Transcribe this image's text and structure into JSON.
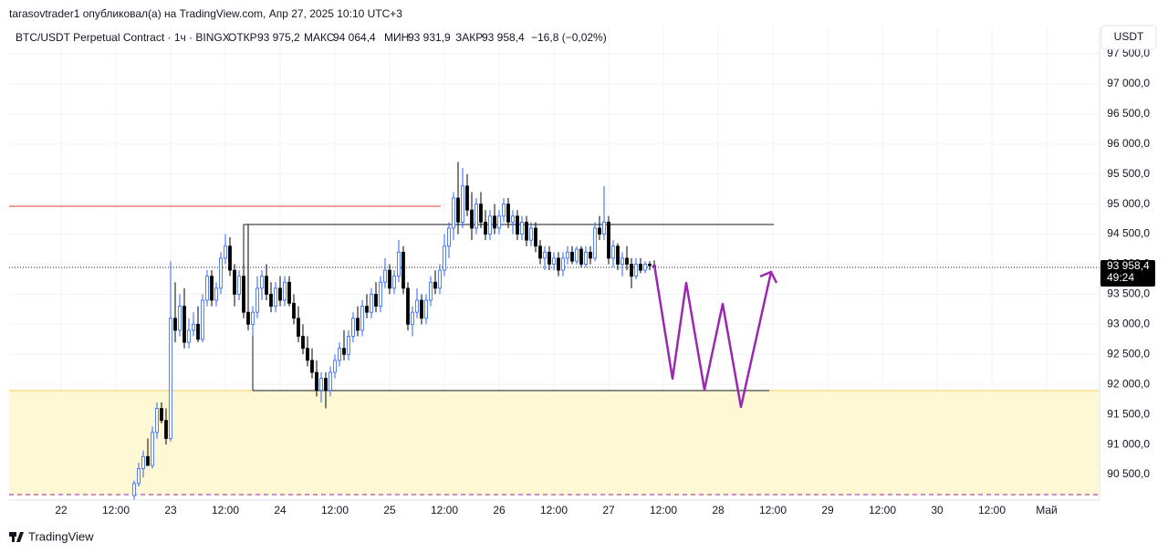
{
  "header": {
    "author_line": "tarasovtrader1 опубликовал(а) на TradingView.com, Апр 27, 2025 10:10 UTC+3",
    "symbol": "BTC/USDT Perpetual Contract · 1ч · BINGX",
    "open_label": "ОТКР",
    "open": "93 975,2",
    "high_label": "МАКС",
    "high": "94 064,4",
    "low_label": "МИН",
    "low": "93 931,9",
    "close_label": "ЗАКР",
    "close": "93 958,4",
    "change": "−16,8 (−0,02%)",
    "currency": "USDT",
    "last_price_label": "93 958,4",
    "countdown": "49:24"
  },
  "footer": {
    "brand": "TradingView"
  },
  "chart_data": {
    "type": "candlestick",
    "up_color": "#2962ff",
    "down_color": "#000000",
    "grid": true,
    "xlim": [
      -11.4,
      227.6
    ],
    "ylim": [
      90075,
      97940
    ],
    "xticks": [
      {
        "value": 0,
        "label": "22"
      },
      {
        "value": 12,
        "label": "12:00"
      },
      {
        "value": 24,
        "label": "23"
      },
      {
        "value": 36,
        "label": "12:00"
      },
      {
        "value": 48,
        "label": "24"
      },
      {
        "value": 60,
        "label": "12:00"
      },
      {
        "value": 72,
        "label": "25"
      },
      {
        "value": 84,
        "label": "12:00"
      },
      {
        "value": 96,
        "label": "26"
      },
      {
        "value": 108,
        "label": "12:00"
      },
      {
        "value": 120,
        "label": "27"
      },
      {
        "value": 132,
        "label": "12:00"
      },
      {
        "value": 144,
        "label": "28"
      },
      {
        "value": 156,
        "label": "12:00"
      },
      {
        "value": 168,
        "label": "29"
      },
      {
        "value": 180,
        "label": "12:00"
      },
      {
        "value": 192,
        "label": "30"
      },
      {
        "value": 204,
        "label": "12:00"
      },
      {
        "value": 216,
        "label": "Май"
      }
    ],
    "yticks": [
      {
        "value": 90500,
        "label": "90 500,0"
      },
      {
        "value": 91000,
        "label": "91 000,0"
      },
      {
        "value": 91500,
        "label": "91 500,0"
      },
      {
        "value": 92000,
        "label": "92 000,0"
      },
      {
        "value": 92500,
        "label": "92 500,0"
      },
      {
        "value": 93000,
        "label": "93 000,0"
      },
      {
        "value": 93500,
        "label": "93 500,0"
      },
      {
        "value": 94000,
        "label": "94 000,0"
      },
      {
        "value": 94500,
        "label": "94 500,0"
      },
      {
        "value": 95000,
        "label": "95 000,0"
      },
      {
        "value": 95500,
        "label": "95 500,0"
      },
      {
        "value": 96000,
        "label": "96 000,0"
      },
      {
        "value": 96500,
        "label": "96 500,0"
      },
      {
        "value": 97000,
        "label": "97 000,0"
      },
      {
        "value": 97500,
        "label": "97 500,0"
      }
    ],
    "x": [
      16,
      17,
      18,
      19,
      20,
      21,
      22,
      23,
      24,
      25,
      26,
      27,
      28,
      29,
      30,
      31,
      32,
      33,
      34,
      35,
      36,
      37,
      38,
      39,
      40,
      41,
      42,
      43,
      44,
      45,
      46,
      47,
      48,
      49,
      50,
      51,
      52,
      53,
      54,
      55,
      56,
      57,
      58,
      59,
      60,
      61,
      62,
      63,
      64,
      65,
      66,
      67,
      68,
      69,
      70,
      71,
      72,
      73,
      74,
      75,
      76,
      77,
      78,
      79,
      80,
      81,
      82,
      83,
      84,
      85,
      86,
      87,
      88,
      89,
      90,
      91,
      92,
      93,
      94,
      95,
      96,
      97,
      98,
      99,
      100,
      101,
      102,
      103,
      104,
      105,
      106,
      107,
      108,
      109,
      110,
      111,
      112,
      113,
      114,
      115,
      116,
      117,
      118,
      119,
      120,
      121,
      122,
      123,
      124,
      125,
      126,
      127,
      128,
      129,
      130
    ],
    "ohlc": [
      [
        90150,
        90400,
        90080,
        90350
      ],
      [
        90350,
        90700,
        90300,
        90600
      ],
      [
        90600,
        90900,
        90450,
        90800
      ],
      [
        90800,
        91100,
        90700,
        90650
      ],
      [
        90650,
        91300,
        90600,
        91200
      ],
      [
        91200,
        91700,
        91100,
        91600
      ],
      [
        91600,
        91700,
        91350,
        91400
      ],
      [
        91400,
        91600,
        91000,
        91100
      ],
      [
        91100,
        94050,
        91050,
        93100
      ],
      [
        93100,
        93700,
        92700,
        92900
      ],
      [
        92900,
        93500,
        92800,
        93300
      ],
      [
        93300,
        93600,
        92600,
        92700
      ],
      [
        92700,
        93100,
        92600,
        92900
      ],
      [
        92900,
        93200,
        92800,
        93000
      ],
      [
        93000,
        93300,
        92700,
        92750
      ],
      [
        92750,
        93500,
        92700,
        93400
      ],
      [
        93400,
        93900,
        93300,
        93800
      ],
      [
        93800,
        93900,
        93300,
        93400
      ],
      [
        93400,
        93700,
        93300,
        93600
      ],
      [
        93600,
        94200,
        93500,
        94100
      ],
      [
        94100,
        94500,
        94000,
        94300
      ],
      [
        94300,
        94450,
        93800,
        93900
      ],
      [
        93900,
        94000,
        93300,
        93500
      ],
      [
        93500,
        93900,
        93400,
        93800
      ],
      [
        93800,
        94000,
        93100,
        93200
      ],
      [
        93200,
        94650,
        92900,
        93000
      ],
      [
        93000,
        93300,
        92800,
        93200
      ],
      [
        93200,
        93800,
        93100,
        93600
      ],
      [
        93600,
        93900,
        93400,
        93800
      ],
      [
        93800,
        94000,
        93400,
        93500
      ],
      [
        93500,
        93700,
        93200,
        93300
      ],
      [
        93300,
        93700,
        93200,
        93600
      ],
      [
        93600,
        93800,
        93300,
        93400
      ],
      [
        93400,
        93800,
        93300,
        93700
      ],
      [
        93700,
        93800,
        93300,
        93350
      ],
      [
        93350,
        93500,
        93000,
        93100
      ],
      [
        93100,
        93300,
        92700,
        92800
      ],
      [
        92800,
        93000,
        92500,
        92600
      ],
      [
        92600,
        92800,
        92300,
        92400
      ],
      [
        92400,
        92600,
        92100,
        92200
      ],
      [
        92200,
        92400,
        91800,
        91900
      ],
      [
        91900,
        92200,
        91700,
        92100
      ],
      [
        92100,
        92200,
        91600,
        91900
      ],
      [
        91900,
        92300,
        91800,
        92200
      ],
      [
        92200,
        92500,
        92100,
        92400
      ],
      [
        92400,
        92700,
        92300,
        92600
      ],
      [
        92600,
        92900,
        92400,
        92500
      ],
      [
        92500,
        92900,
        92400,
        92800
      ],
      [
        92800,
        93200,
        92700,
        93100
      ],
      [
        93100,
        93300,
        92800,
        92900
      ],
      [
        92900,
        93400,
        92800,
        93300
      ],
      [
        93300,
        93500,
        93100,
        93200
      ],
      [
        93200,
        93600,
        93100,
        93500
      ],
      [
        93500,
        93700,
        93200,
        93300
      ],
      [
        93300,
        93800,
        93200,
        93700
      ],
      [
        93700,
        94100,
        93600,
        93900
      ],
      [
        93900,
        94000,
        93500,
        93600
      ],
      [
        93600,
        93900,
        93500,
        93800
      ],
      [
        93800,
        94400,
        93700,
        94200
      ],
      [
        94200,
        94300,
        93500,
        93600
      ],
      [
        93600,
        93700,
        92900,
        93000
      ],
      [
        93000,
        93300,
        92800,
        93200
      ],
      [
        93200,
        93600,
        93100,
        93400
      ],
      [
        93400,
        93500,
        93000,
        93100
      ],
      [
        93100,
        93500,
        93000,
        93400
      ],
      [
        93400,
        93800,
        93300,
        93700
      ],
      [
        93700,
        93900,
        93500,
        93600
      ],
      [
        93600,
        94000,
        93500,
        93900
      ],
      [
        93900,
        94500,
        93800,
        94300
      ],
      [
        94300,
        94700,
        94100,
        94600
      ],
      [
        94600,
        95200,
        94400,
        95100
      ],
      [
        95100,
        95700,
        94500,
        94700
      ],
      [
        94700,
        95600,
        94600,
        95300
      ],
      [
        95300,
        95500,
        94800,
        94900
      ],
      [
        94900,
        95200,
        94400,
        94600
      ],
      [
        94600,
        95100,
        94500,
        95000
      ],
      [
        95000,
        95200,
        94600,
        94700
      ],
      [
        94700,
        94900,
        94400,
        94500
      ],
      [
        94500,
        94900,
        94400,
        94800
      ],
      [
        94800,
        95000,
        94500,
        94600
      ],
      [
        94600,
        94900,
        94500,
        94800
      ],
      [
        94800,
        95100,
        94700,
        95000
      ],
      [
        95000,
        95100,
        94600,
        94700
      ],
      [
        94700,
        94900,
        94500,
        94800
      ],
      [
        94800,
        94900,
        94400,
        94500
      ],
      [
        94500,
        94800,
        94400,
        94700
      ],
      [
        94700,
        94800,
        94300,
        94400
      ],
      [
        94400,
        94700,
        94300,
        94600
      ],
      [
        94600,
        94700,
        94200,
        94300
      ],
      [
        94300,
        94400,
        94000,
        94100
      ],
      [
        94100,
        94300,
        93900,
        94200
      ],
      [
        94200,
        94300,
        93900,
        94000
      ],
      [
        94000,
        94200,
        93900,
        94100
      ],
      [
        94100,
        94200,
        93800,
        93900
      ],
      [
        93900,
        94200,
        93800,
        94100
      ],
      [
        94100,
        94300,
        94000,
        94200
      ],
      [
        94200,
        94300,
        94000,
        94050
      ],
      [
        94050,
        94300,
        94000,
        94250
      ],
      [
        94250,
        94300,
        93950,
        94000
      ],
      [
        94000,
        94300,
        93950,
        94200
      ],
      [
        94200,
        94300,
        94000,
        94100
      ],
      [
        94100,
        94700,
        94050,
        94600
      ],
      [
        94600,
        94800,
        94400,
        94500
      ],
      [
        94500,
        95300,
        94400,
        94700
      ],
      [
        94700,
        94800,
        94000,
        94100
      ],
      [
        94100,
        94400,
        93950,
        94300
      ],
      [
        94300,
        94350,
        93900,
        94000
      ],
      [
        94000,
        94200,
        93800,
        94100
      ],
      [
        94100,
        94300,
        93900,
        94000
      ],
      [
        94000,
        94100,
        93600,
        93800
      ],
      [
        93800,
        94100,
        93750,
        94000
      ],
      [
        94000,
        94100,
        93850,
        93900
      ],
      [
        93900,
        94050,
        93850,
        94000
      ],
      [
        94000,
        94050,
        93900,
        93975.2
      ],
      [
        93975.2,
        94064.4,
        93931.9,
        93958.4
      ]
    ]
  }
}
